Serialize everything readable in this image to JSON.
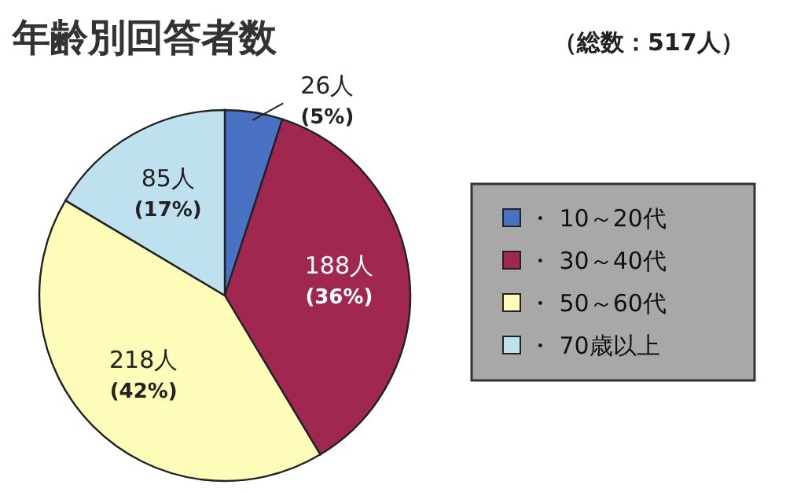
{
  "chart_data": {
    "type": "pie",
    "title": "年齢別回答者数",
    "subtitle": "（総数：517人）",
    "categories": [
      "・ 10～20代",
      "・ 30～40代",
      "・ 50～60代",
      "・ 70歳以上"
    ],
    "values": [
      26,
      188,
      218,
      85
    ],
    "colors": [
      "#4a72c4",
      "#a0274f",
      "#fdfdb9",
      "#bfe1ef"
    ],
    "value_labels": [
      "26人 (5%)",
      "188人 (36%)",
      "218人 (42%)",
      "85人 (17%)"
    ],
    "legend": "right"
  }
}
